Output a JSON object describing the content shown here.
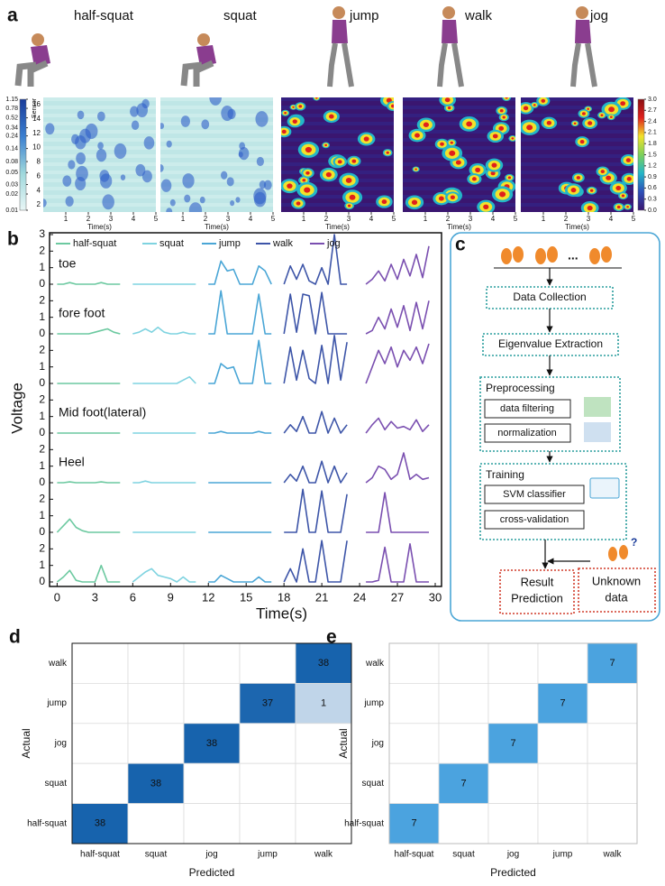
{
  "chart_data": [
    {
      "type": "sensor-map",
      "panel": "a",
      "titles": [
        "half-squat",
        "squat",
        "jump",
        "walk",
        "jog"
      ],
      "xlabel": "Time(s)",
      "xlim": [
        0,
        5
      ],
      "xticks": [
        1,
        2,
        3,
        4,
        5
      ],
      "ylabel": "Sensor",
      "ylim": [
        1,
        17
      ],
      "yticks": [
        2,
        4,
        6,
        8,
        10,
        12,
        14,
        16
      ],
      "colorbars": [
        {
          "clim": [
            0.01,
            1.15
          ],
          "log": true,
          "colors": [
            "#e8f6f6",
            "#9fd8dc",
            "#3b7fd0",
            "#1a3c9a"
          ],
          "ticks": [
            0.01,
            0.02,
            0.03,
            0.05,
            0.08,
            0.14,
            0.24,
            0.34,
            0.52,
            0.78,
            1.15
          ]
        },
        {
          "clim": [
            0,
            3
          ],
          "log": false,
          "colors": [
            "#3a1670",
            "#2d4fb8",
            "#23b6c8",
            "#7cd05a",
            "#f2e22a",
            "#e0201c",
            "#8a0f12"
          ],
          "ticks": [
            {
              "value": 0,
              "label": "0.0"
            },
            0.3,
            0.6,
            0.9,
            1.2,
            1.5,
            1.8,
            2.1,
            2.4,
            2.7,
            {
              "value": 3,
              "label": "3.0"
            }
          ]
        }
      ]
    },
    {
      "type": "line",
      "panel": "b",
      "xlabel": "Time(s)",
      "ylabel": "Voltage",
      "xlim": [
        -0.6,
        30.5
      ],
      "xticks": [
        0,
        3,
        6,
        9,
        12,
        15,
        18,
        21,
        24,
        27,
        30
      ],
      "ylim": [
        0,
        3
      ],
      "yticks": [
        0,
        1,
        2,
        3
      ],
      "row_labels": [
        "toe",
        "fore foot",
        null,
        "Mid foot(lateral)",
        "Heel",
        null,
        null
      ],
      "series": [
        {
          "name": "half-squat",
          "color": "#6cc9a0",
          "x": [
            0,
            0.5,
            1,
            1.5,
            2,
            2.5,
            3,
            3.5,
            4,
            4.5,
            5
          ],
          "values": [
            [
              0,
              0,
              0.1,
              0,
              0,
              0,
              0,
              0.1,
              0,
              0,
              0
            ],
            [
              0,
              0,
              0,
              0,
              0,
              0,
              0.1,
              0.2,
              0.3,
              0.1,
              0
            ],
            [
              0,
              0,
              0,
              0,
              0,
              0,
              0,
              0,
              0,
              0,
              0
            ],
            [
              0,
              0,
              0,
              0,
              0,
              0,
              0,
              0,
              0,
              0,
              0
            ],
            [
              0,
              0,
              0.05,
              0,
              0,
              0,
              0,
              0.05,
              0,
              0,
              0
            ],
            [
              0,
              0.4,
              0.8,
              0.3,
              0.1,
              0,
              0,
              0,
              0,
              0,
              0
            ],
            [
              0,
              0.3,
              0.7,
              0.1,
              0,
              0,
              0,
              1,
              0,
              0,
              0
            ]
          ]
        },
        {
          "name": "squat",
          "color": "#7fd3e0",
          "x": [
            6,
            6.5,
            7,
            7.5,
            8,
            8.5,
            9,
            9.5,
            10,
            10.5,
            11
          ],
          "values": [
            [
              0,
              0,
              0,
              0,
              0,
              0,
              0,
              0,
              0,
              0,
              0
            ],
            [
              0,
              0.1,
              0.3,
              0.1,
              0.4,
              0.1,
              0,
              0,
              0.1,
              0,
              0
            ],
            [
              0,
              0,
              0,
              0,
              0,
              0,
              0,
              0,
              0.2,
              0.4,
              0
            ],
            [
              0,
              0,
              0,
              0,
              0,
              0,
              0,
              0,
              0,
              0,
              0
            ],
            [
              0,
              0,
              0.1,
              0,
              0,
              0,
              0,
              0,
              0,
              0,
              0
            ],
            [
              0,
              0,
              0,
              0,
              0,
              0,
              0,
              0,
              0,
              0,
              0
            ],
            [
              0,
              0.3,
              0.6,
              0.8,
              0.4,
              0.3,
              0.2,
              0,
              0.3,
              0,
              0
            ]
          ]
        },
        {
          "name": "jump",
          "color": "#4aa6d6",
          "x": [
            12,
            12.5,
            13,
            13.5,
            14,
            14.5,
            15,
            15.5,
            16,
            16.5,
            17
          ],
          "values": [
            [
              0,
              0,
              1.4,
              0.8,
              0.9,
              0,
              0,
              0,
              1.1,
              0.8,
              0
            ],
            [
              0,
              0,
              2.6,
              0,
              0,
              0,
              0,
              0,
              2.4,
              0,
              0
            ],
            [
              0,
              0,
              1.2,
              0.9,
              1,
              0,
              0,
              0,
              2.6,
              0,
              0
            ],
            [
              0,
              0,
              0.1,
              0,
              0,
              0,
              0,
              0,
              0.1,
              0,
              0
            ],
            [
              0,
              0,
              0,
              0,
              0,
              0,
              0,
              0,
              0,
              0,
              0
            ],
            [
              0,
              0,
              0,
              0,
              0,
              0,
              0,
              0,
              0,
              0,
              0
            ],
            [
              0,
              0,
              0.4,
              0.2,
              0,
              0,
              0,
              0,
              0.3,
              0,
              0
            ]
          ]
        },
        {
          "name": "walk",
          "color": "#3d55a8",
          "x": [
            18,
            18.5,
            19,
            19.5,
            20,
            20.5,
            21,
            21.5,
            22,
            22.5,
            23
          ],
          "values": [
            [
              0,
              1.1,
              0.3,
              1.2,
              0.2,
              0,
              1,
              0,
              3,
              0,
              0
            ],
            [
              0,
              2.4,
              0.1,
              2.4,
              2.3,
              0,
              2.5,
              0,
              0,
              0,
              0
            ],
            [
              0,
              2.2,
              0.2,
              2,
              0.3,
              0,
              2.3,
              0,
              2.9,
              0.2,
              2.5
            ],
            [
              0,
              0.5,
              0.1,
              1,
              0,
              0,
              1.3,
              0,
              0.9,
              0,
              0.5
            ],
            [
              0,
              0.5,
              0.1,
              1,
              0,
              0,
              1.3,
              0,
              1,
              0,
              0.6
            ],
            [
              0,
              0,
              0,
              2.6,
              0,
              0,
              2.5,
              0,
              0,
              0,
              2.3
            ],
            [
              0,
              0.8,
              0,
              2,
              0,
              0,
              2.5,
              0,
              0,
              0,
              2.5
            ]
          ]
        },
        {
          "name": "jog",
          "color": "#7a4fb0",
          "x": [
            24.5,
            25,
            25.5,
            26,
            26.5,
            27,
            27.5,
            28,
            28.5,
            29,
            29.5
          ],
          "values": [
            [
              0,
              0.3,
              0.8,
              0.2,
              1.2,
              0.3,
              1.5,
              0.5,
              1.8,
              0.4,
              2.3
            ],
            [
              0,
              0.2,
              1,
              0.3,
              1.5,
              0.4,
              1.7,
              0.2,
              1.9,
              0.3,
              2
            ],
            [
              0,
              1,
              2,
              1.2,
              2.2,
              1,
              2,
              1.4,
              2.2,
              1.2,
              2.4
            ],
            [
              0,
              0.5,
              0.9,
              0.2,
              0.7,
              0.3,
              0.4,
              0.2,
              0.8,
              0.1,
              0.5
            ],
            [
              0,
              0.3,
              1,
              0.8,
              0.2,
              0.5,
              1.8,
              0.2,
              0.5,
              0.2,
              0.3
            ],
            [
              0,
              0,
              0,
              2.4,
              0,
              0,
              0,
              0,
              0,
              0,
              0
            ],
            [
              0,
              0,
              0.1,
              2.1,
              0,
              0,
              0,
              2.3,
              0,
              0,
              0
            ]
          ]
        }
      ]
    },
    {
      "type": "heatmap",
      "panel": "d",
      "color": "#1763ad",
      "xlabel": "Predicted",
      "ylabel": "Actual",
      "x_categories": [
        "half-squat",
        "squat",
        "jog",
        "jump",
        "walk"
      ],
      "y_categories": [
        "walk",
        "jump",
        "jog",
        "squat",
        "half-squat"
      ],
      "values": [
        [
          0,
          0,
          0,
          0,
          38
        ],
        [
          0,
          0,
          0,
          37,
          1
        ],
        [
          0,
          0,
          38,
          0,
          0
        ],
        [
          0,
          38,
          0,
          0,
          0
        ],
        [
          38,
          0,
          0,
          0,
          0
        ]
      ]
    },
    {
      "type": "heatmap",
      "panel": "e",
      "color": "#4ba3df",
      "xlabel": "Predicted",
      "ylabel": "Actual",
      "x_categories": [
        "half-squat",
        "squat",
        "jog",
        "jump",
        "walk"
      ],
      "y_categories": [
        "walk",
        "jump",
        "jog",
        "squat",
        "half-squat"
      ],
      "values": [
        [
          0,
          0,
          0,
          0,
          7
        ],
        [
          0,
          0,
          0,
          7,
          0
        ],
        [
          0,
          0,
          7,
          0,
          0
        ],
        [
          0,
          7,
          0,
          0,
          0
        ],
        [
          7,
          0,
          0,
          0,
          0
        ]
      ]
    }
  ],
  "diagram": {
    "panel": "c",
    "ellipsis": "...",
    "question": "?",
    "steps": [
      "Data  Collection",
      "Eigenvalue Extraction",
      "Preprocessing",
      "data filtering",
      "normalization",
      "Training",
      "SVM classifier",
      "cross-validation"
    ],
    "result": [
      "Result",
      "Prediction"
    ],
    "unknown": [
      "Unknown",
      "data"
    ]
  }
}
